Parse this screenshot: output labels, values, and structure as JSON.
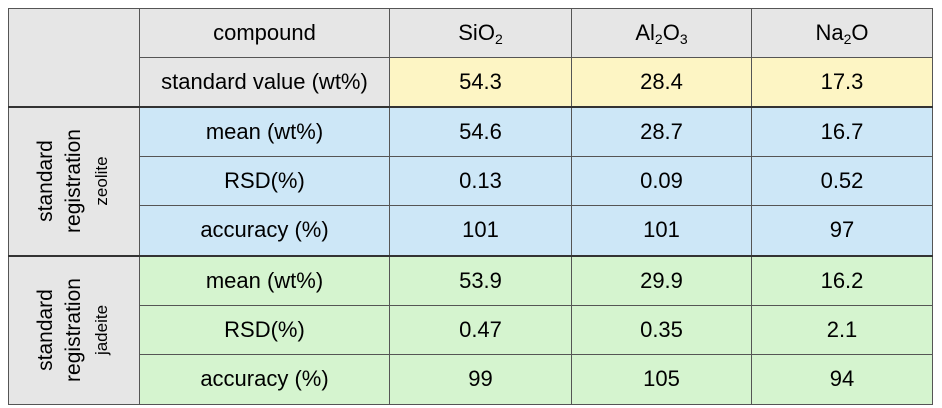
{
  "header": {
    "compound_label": "compound",
    "columns": [
      {
        "base": "Si",
        "parts": [
          {
            "text": "Si"
          },
          {
            "text": "O"
          },
          {
            "sub": "2"
          }
        ]
      },
      {
        "parts": [
          {
            "text": "Al"
          },
          {
            "sub": "2"
          },
          {
            "text": "O"
          },
          {
            "sub": "3"
          }
        ]
      },
      {
        "parts": [
          {
            "text": "Na"
          },
          {
            "sub": "2"
          },
          {
            "text": "O"
          }
        ]
      }
    ]
  },
  "standard_value": {
    "label": "standard value (wt%)",
    "values": [
      "54.3",
      "28.4",
      "17.3"
    ]
  },
  "groups": [
    {
      "line1": "standard",
      "line2": "registration",
      "line3": "zeolite",
      "rows": [
        {
          "label": "mean (wt%)",
          "values": [
            "54.6",
            "28.7",
            "16.7"
          ]
        },
        {
          "label": "RSD(%)",
          "values": [
            "0.13",
            "0.09",
            "0.52"
          ]
        },
        {
          "label": "accuracy (%)",
          "values": [
            "101",
            "101",
            "97"
          ]
        }
      ]
    },
    {
      "line1": "standard",
      "line2": "registration",
      "line3": "jadeite",
      "rows": [
        {
          "label": "mean (wt%)",
          "values": [
            "53.9",
            "29.9",
            "16.2"
          ]
        },
        {
          "label": "RSD(%)",
          "values": [
            "0.47",
            "0.35",
            "2.1"
          ]
        },
        {
          "label": "accuracy (%)",
          "values": [
            "99",
            "105",
            "94"
          ]
        }
      ]
    }
  ],
  "colors": {
    "header_bg": "#e6e6e6",
    "standard_value_bg": "#fdf5c4",
    "zeolite_bg": "#cde7f7",
    "jadeite_bg": "#d5f4cf",
    "border": "#555555"
  }
}
